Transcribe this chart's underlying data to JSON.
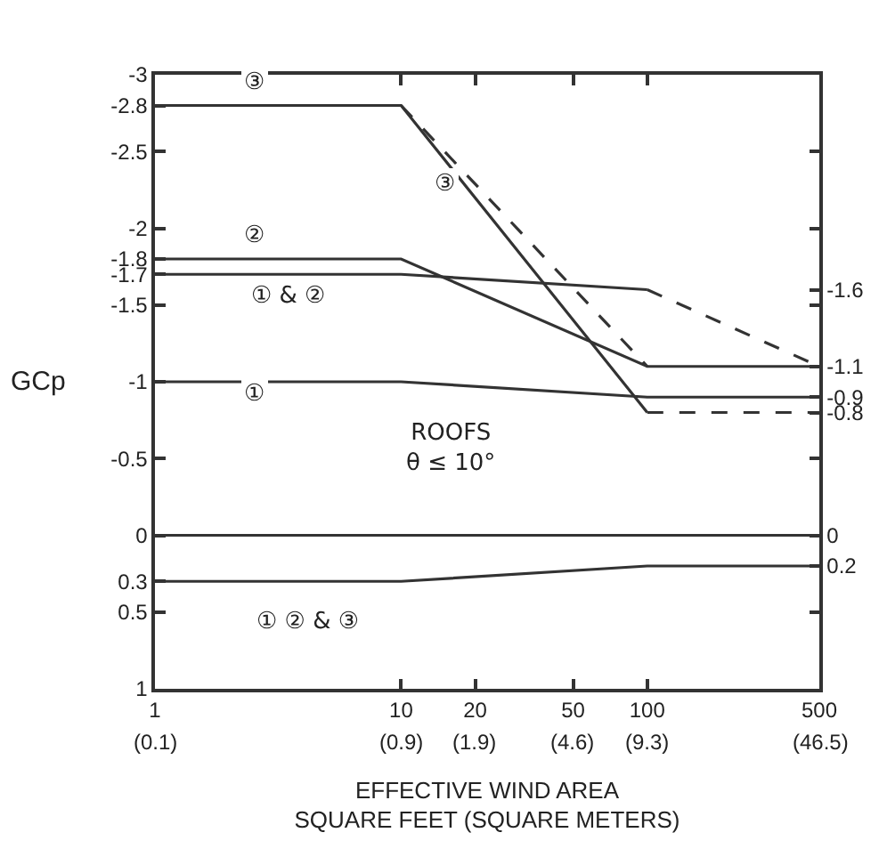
{
  "chart_data": {
    "type": "line",
    "xlabel": "EFFECTIVE WIND AREA\nSQUARE FEET (SQUARE METERS)",
    "ylabel": "GCp",
    "log": "x",
    "marker": "none",
    "xlim": [
      1,
      500
    ],
    "xticks": [
      1,
      10,
      20,
      50,
      100,
      500
    ],
    "ylim": [
      1,
      -3
    ],
    "yticks": [
      -3,
      -2.8,
      -2.5,
      -2,
      -1.8,
      -1.7,
      -1.5,
      -1,
      -0.5,
      0,
      0.3,
      0.5,
      1
    ],
    "y2lim": [
      1,
      -3
    ],
    "y2ticks": [
      {
        "value": -2.5,
        "label": null
      },
      {
        "value": -2,
        "label": null
      },
      -1.6,
      {
        "value": -1.5,
        "label": null
      },
      -1.1,
      -0.9,
      -0.8,
      {
        "value": -0.5,
        "label": null
      },
      0,
      0.2,
      {
        "value": 0.5,
        "label": null
      }
    ],
    "series": [
      {
        "color": "#333333",
        "line_style": "solid",
        "x": [
          1,
          10,
          100
        ],
        "values": [
          -2.8,
          -2.8,
          -0.8
        ]
      },
      {
        "color": "#333333",
        "line_style": "dashed",
        "x": [
          10,
          100
        ],
        "values": [
          -2.8,
          -1.1
        ]
      },
      {
        "color": "#333333",
        "line_style": "dashed",
        "x": [
          100,
          500
        ],
        "values": [
          -0.8,
          -0.8
        ]
      },
      {
        "color": "#333333",
        "line_style": "solid",
        "x": [
          1,
          10,
          100,
          500
        ],
        "values": [
          -1.8,
          -1.8,
          -1.1,
          -1.1
        ]
      },
      {
        "color": "#333333",
        "line_style": "solid",
        "x": [
          1,
          10,
          100
        ],
        "values": [
          -1.7,
          -1.7,
          -1.6
        ]
      },
      {
        "color": "#333333",
        "line_style": "dashed",
        "x": [
          100,
          500
        ],
        "values": [
          -1.6,
          -1.1
        ]
      },
      {
        "color": "#333333",
        "line_style": "solid",
        "x": [
          1,
          10,
          100,
          500
        ],
        "values": [
          -1,
          -1,
          -0.9,
          -0.9
        ]
      },
      {
        "color": "#333333",
        "line_style": "solid",
        "x": [
          1,
          500
        ],
        "values": [
          0,
          0
        ]
      },
      {
        "color": "#333333",
        "line_style": "solid",
        "x": [
          1,
          10,
          100,
          500
        ],
        "values": [
          0.3,
          0.3,
          0.2,
          0.2
        ]
      }
    ],
    "annotations": [
      "③",
      "②",
      "① & ②",
      "①",
      "③",
      "① ② & ③",
      "ROOFS\nθ ≤ 10°",
      "(0.1)",
      "(0.9)",
      "(1.9)",
      "(4.6)",
      "(9.3)",
      "(46.5)"
    ]
  }
}
